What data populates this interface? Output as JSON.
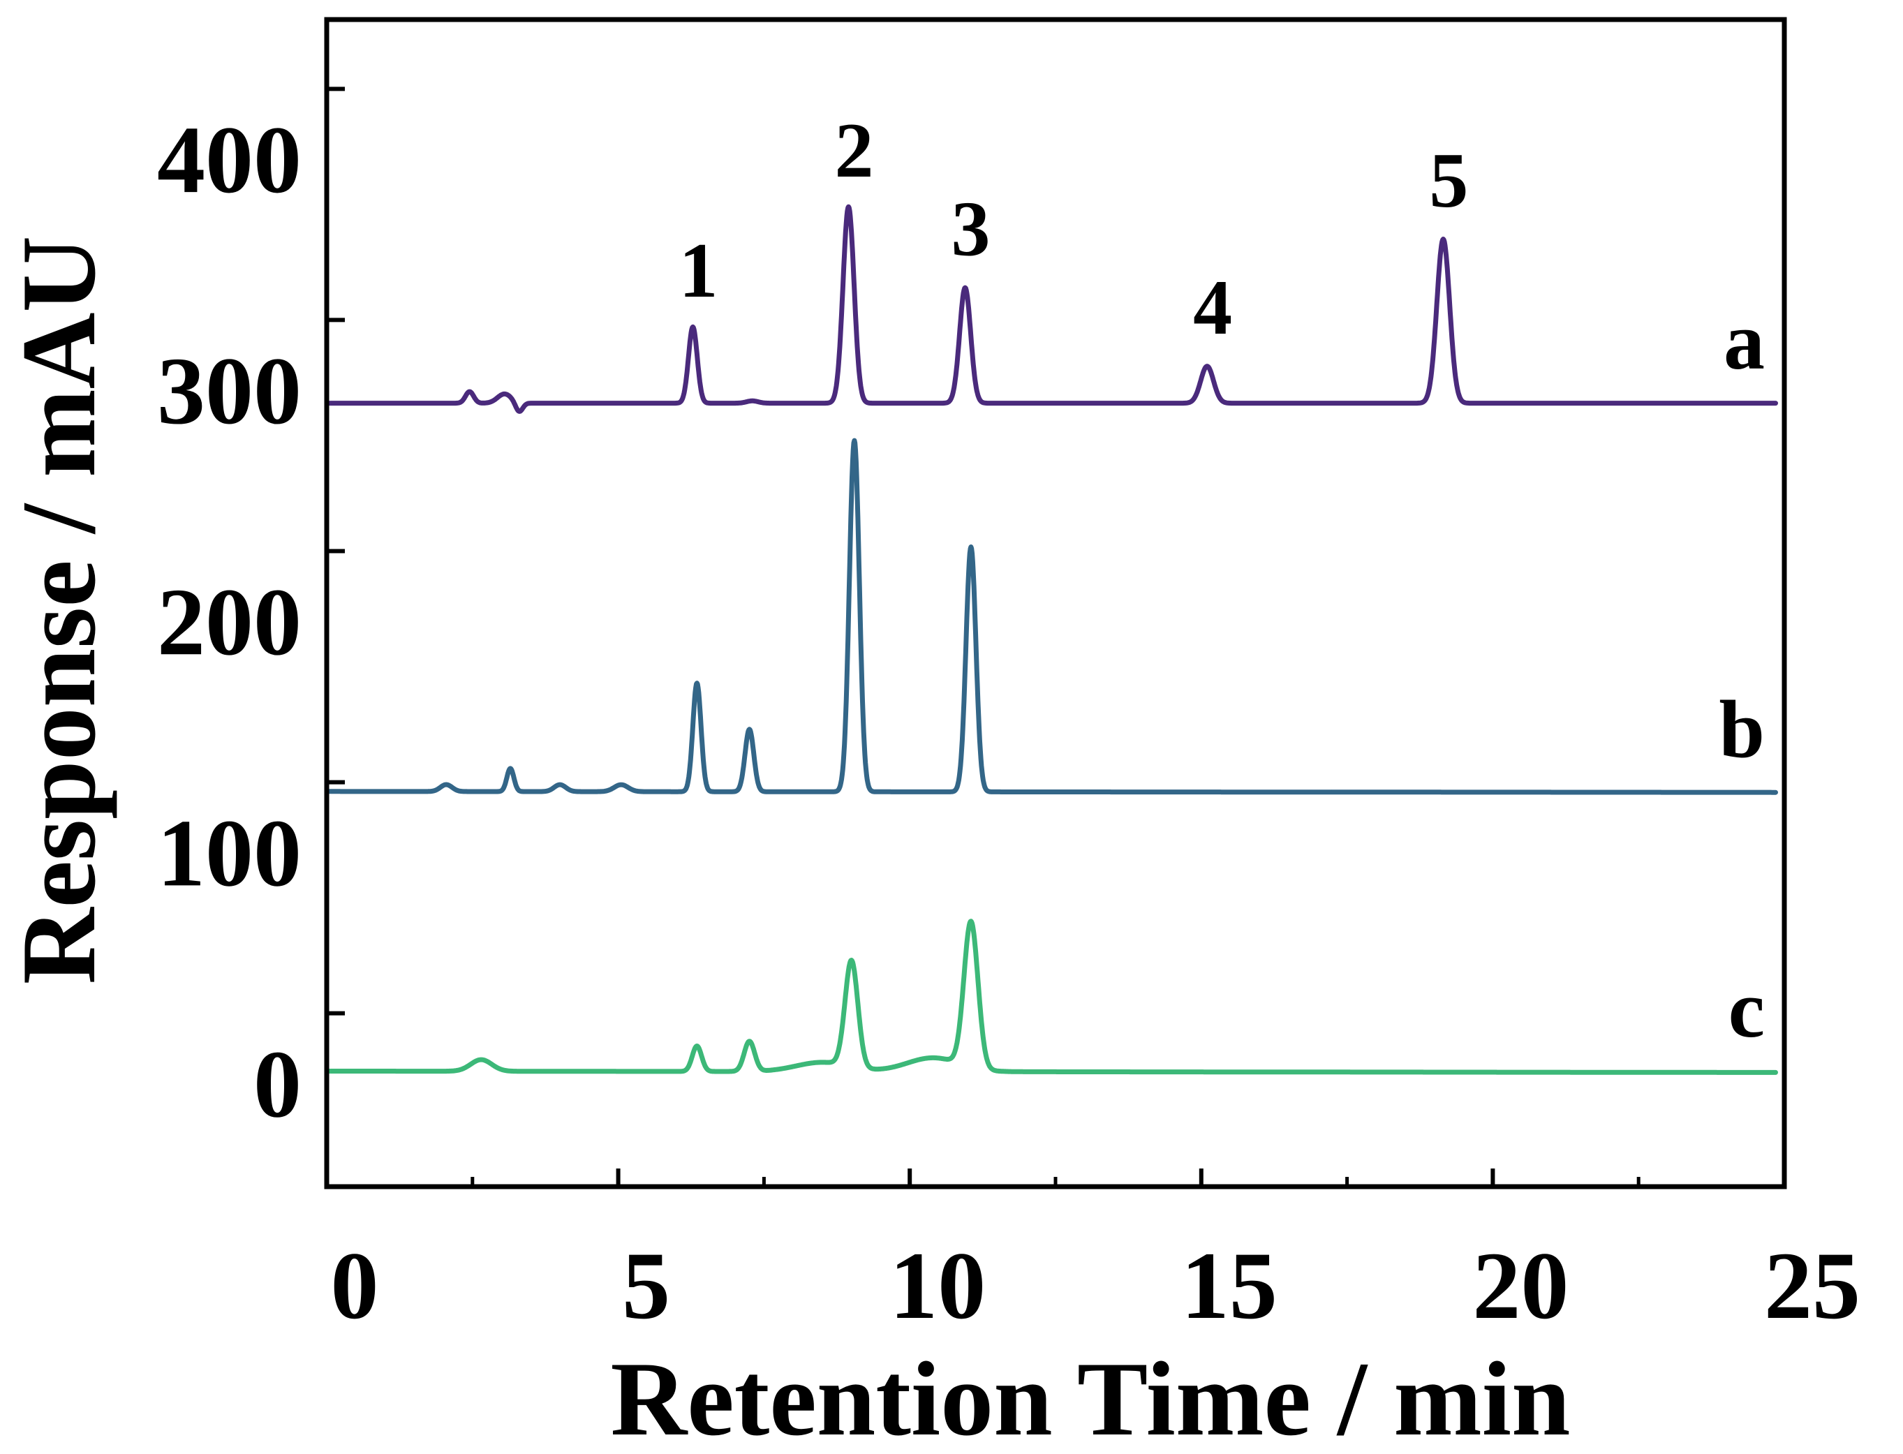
{
  "chart_data": {
    "type": "line",
    "title": "",
    "xlabel": "Retention Time / min",
    "ylabel": "Response / mAU",
    "xlim": [
      0,
      25
    ],
    "ylim": [
      -50,
      455
    ],
    "x_ticks": [
      0,
      5,
      10,
      15,
      20,
      25
    ],
    "x_tick_labels": [
      "0",
      "5",
      "10",
      "15",
      "20",
      "25"
    ],
    "y_ticks": [
      0,
      100,
      200,
      300,
      400
    ],
    "y_tick_labels": [
      "0",
      "100",
      "200",
      "300",
      "400"
    ],
    "grid": false,
    "series": [
      {
        "name": "a",
        "color": "#4a2a7c",
        "baseline": 289,
        "drift": 0,
        "peaks": [
          {
            "x": 2.45,
            "h": 5,
            "w": 0.07
          },
          {
            "x": 3.05,
            "h": 4,
            "w": 0.12
          },
          {
            "x": 3.3,
            "h": -4,
            "w": 0.06
          },
          {
            "x": 6.28,
            "h": 33,
            "w": 0.075
          },
          {
            "x": 7.3,
            "h": 1,
            "w": 0.1
          },
          {
            "x": 8.95,
            "h": 85,
            "w": 0.095
          },
          {
            "x": 10.95,
            "h": 50,
            "w": 0.095
          },
          {
            "x": 15.1,
            "h": 16,
            "w": 0.11
          },
          {
            "x": 19.15,
            "h": 71,
            "w": 0.11
          }
        ]
      },
      {
        "name": "b",
        "color": "#336688",
        "baseline": 121,
        "drift": -0.4,
        "peaks": [
          {
            "x": 2.05,
            "h": 3,
            "w": 0.1
          },
          {
            "x": 3.15,
            "h": 10,
            "w": 0.06
          },
          {
            "x": 4.0,
            "h": 3,
            "w": 0.1
          },
          {
            "x": 5.05,
            "h": 3,
            "w": 0.12
          },
          {
            "x": 6.35,
            "h": 47,
            "w": 0.07
          },
          {
            "x": 7.25,
            "h": 27,
            "w": 0.075
          },
          {
            "x": 9.05,
            "h": 152,
            "w": 0.085
          },
          {
            "x": 11.05,
            "h": 106,
            "w": 0.085
          }
        ]
      },
      {
        "name": "c",
        "color": "#3cb878",
        "baseline": 0,
        "drift": -0.6,
        "peaks": [
          {
            "x": 2.65,
            "h": 5,
            "w": 0.18
          },
          {
            "x": 6.35,
            "h": 11,
            "w": 0.08
          },
          {
            "x": 7.25,
            "h": 13,
            "w": 0.09
          },
          {
            "x": 9.0,
            "h": 46,
            "w": 0.11
          },
          {
            "x": 8.5,
            "h": 4,
            "w": 0.45
          },
          {
            "x": 11.05,
            "h": 63,
            "w": 0.12
          },
          {
            "x": 10.4,
            "h": 6,
            "w": 0.45
          }
        ]
      }
    ],
    "peak_labels": [
      {
        "label": "1",
        "x": 6.28,
        "y": 332
      },
      {
        "label": "2",
        "x": 8.95,
        "y": 384
      },
      {
        "label": "3",
        "x": 10.95,
        "y": 350
      },
      {
        "label": "4",
        "x": 15.1,
        "y": 316
      },
      {
        "label": "5",
        "x": 19.15,
        "y": 371
      }
    ]
  }
}
